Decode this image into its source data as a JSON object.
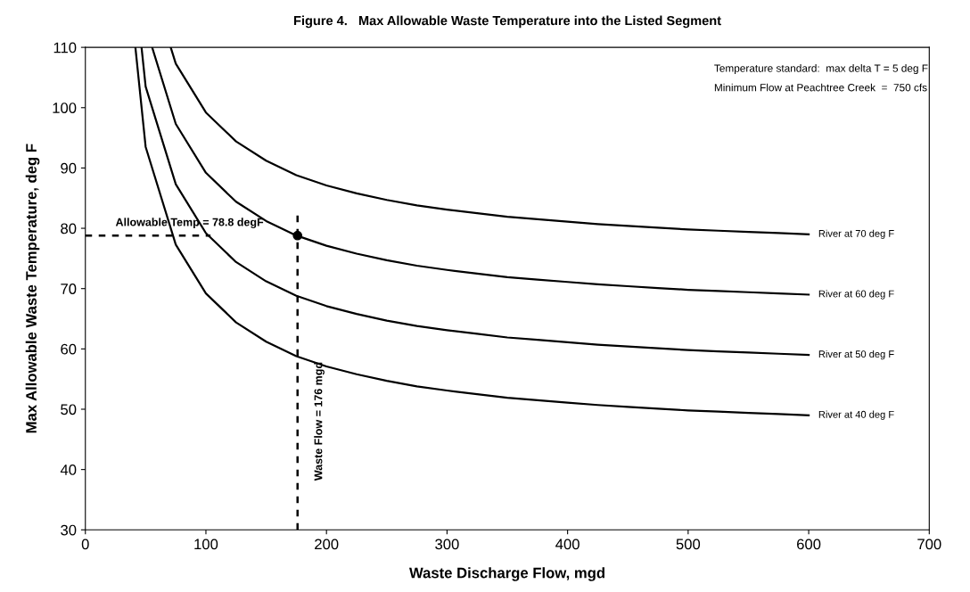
{
  "chart_data": {
    "type": "line",
    "title": "Figure 4.   Max Allowable Waste Temperature into the Listed Segment",
    "xlabel": "Waste Discharge Flow, mgd",
    "ylabel": "Max Allowable Waste Temperature, deg F",
    "xlim": [
      0,
      700
    ],
    "xticks": [
      0,
      100,
      200,
      300,
      400,
      500,
      600,
      700
    ],
    "ylim": [
      30,
      110
    ],
    "yticks": [
      30,
      40,
      50,
      60,
      70,
      80,
      90,
      100,
      110
    ],
    "grid": false,
    "legend": false,
    "marker": "none",
    "line_style": "solid",
    "series": [
      {
        "name": "River at 70 deg F",
        "color": "#000000",
        "x": [
          70.8,
          75,
          100,
          125,
          150,
          175,
          200,
          225,
          250,
          275,
          300,
          325,
          350,
          375,
          400,
          425,
          450,
          475,
          500,
          525,
          550,
          575,
          600
        ],
        "values": [
          110,
          107.3,
          99.2,
          94.4,
          91.2,
          88.8,
          87.1,
          85.8,
          84.7,
          83.8,
          83.1,
          82.5,
          81.9,
          81.5,
          81.1,
          80.7,
          80.4,
          80.1,
          79.8,
          79.6,
          79.4,
          79.2,
          79.0
        ]
      },
      {
        "name": "River at 60 deg F",
        "color": "#000000",
        "x": [
          55.4,
          75,
          100,
          125,
          150,
          175,
          200,
          225,
          250,
          275,
          300,
          325,
          350,
          375,
          400,
          425,
          450,
          475,
          500,
          525,
          550,
          575,
          600
        ],
        "values": [
          110,
          97.3,
          89.2,
          84.4,
          81.2,
          78.8,
          77.1,
          75.8,
          74.7,
          73.8,
          73.1,
          72.5,
          71.9,
          71.5,
          71.1,
          70.7,
          70.4,
          70.1,
          69.8,
          69.6,
          69.4,
          69.2,
          69.0
        ]
      },
      {
        "name": "River at 50 deg F",
        "color": "#000000",
        "x": [
          46.6,
          50,
          75,
          100,
          125,
          150,
          175,
          200,
          225,
          250,
          275,
          300,
          325,
          350,
          375,
          400,
          425,
          450,
          475,
          500,
          525,
          550,
          575,
          600
        ],
        "values": [
          110,
          103.5,
          87.3,
          79.2,
          74.4,
          71.2,
          68.8,
          67.1,
          65.8,
          64.7,
          63.8,
          63.1,
          62.5,
          61.9,
          61.5,
          61.1,
          60.7,
          60.4,
          60.1,
          59.8,
          59.6,
          59.4,
          59.2,
          59.0
        ]
      },
      {
        "name": "River at 40 deg F",
        "color": "#000000",
        "x": [
          41.5,
          50,
          75,
          100,
          125,
          150,
          175,
          200,
          225,
          250,
          275,
          300,
          325,
          350,
          375,
          400,
          425,
          450,
          475,
          500,
          525,
          550,
          575,
          600
        ],
        "values": [
          110,
          93.5,
          77.3,
          69.2,
          64.4,
          61.2,
          58.8,
          57.1,
          55.8,
          54.7,
          53.8,
          53.1,
          52.5,
          51.9,
          51.5,
          51.1,
          50.7,
          50.4,
          50.1,
          49.8,
          49.6,
          49.4,
          49.2,
          49.0
        ]
      },
      {
        "type": "scatter",
        "marker": "circle",
        "color": "#000000",
        "x": [
          176
        ],
        "values": [
          78.8
        ]
      }
    ],
    "ref_lines": [
      {
        "axis": "y",
        "value": 78.8,
        "label": "Allowable Temp = 78.8 degF",
        "line_style": "dashed",
        "color": "#000000"
      },
      {
        "axis": "x",
        "value": 176,
        "label": "Waste Flow = 176 mgd",
        "line_style": "dashed",
        "color": "#000000"
      }
    ],
    "annotations": [
      "Temperature standard:  max delta T = 5 deg F",
      "Minimum Flow at Peachtree Creek  =  750 cfs"
    ]
  }
}
